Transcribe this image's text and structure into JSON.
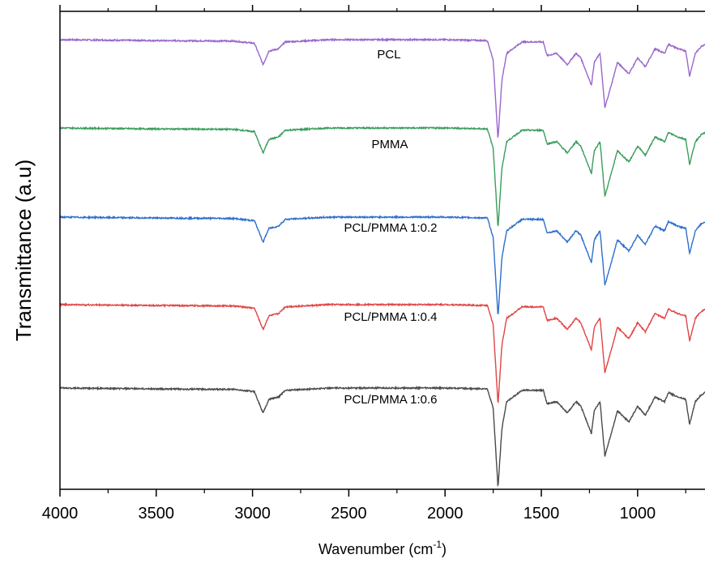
{
  "chart_data": {
    "type": "line",
    "xlabel": "Wavenumber (cm-1)",
    "xlabel_parts": {
      "main": "Wavenumber (cm",
      "sup": "-1",
      "close": ")"
    },
    "ylabel": "Transmittance (a.u)",
    "xlim": [
      4000,
      650
    ],
    "x_reversed": true,
    "y_tick_labels": false,
    "grid": false,
    "x_ticks": [
      4000,
      3500,
      3000,
      2500,
      2000,
      1500,
      1000
    ],
    "x_tick_labels": [
      "4000",
      "3500",
      "3000",
      "2500",
      "2000",
      "1500",
      "1000"
    ],
    "series": [
      {
        "name": "PCL",
        "color": "#9966cc",
        "offset": 4,
        "points": [
          [
            4000,
            0
          ],
          [
            3500,
            -0.02
          ],
          [
            3100,
            -0.03
          ],
          [
            2990,
            -0.08
          ],
          [
            2945,
            -0.55
          ],
          [
            2915,
            -0.25
          ],
          [
            2865,
            -0.2
          ],
          [
            2830,
            -0.05
          ],
          [
            2600,
            0
          ],
          [
            2000,
            0
          ],
          [
            1780,
            -0.02
          ],
          [
            1750,
            -0.45
          ],
          [
            1725,
            -2.2
          ],
          [
            1705,
            -0.9
          ],
          [
            1680,
            -0.3
          ],
          [
            1600,
            -0.05
          ],
          [
            1490,
            -0.05
          ],
          [
            1470,
            -0.35
          ],
          [
            1420,
            -0.3
          ],
          [
            1365,
            -0.55
          ],
          [
            1320,
            -0.3
          ],
          [
            1295,
            -0.4
          ],
          [
            1240,
            -1.0
          ],
          [
            1225,
            -0.5
          ],
          [
            1195,
            -0.3
          ],
          [
            1170,
            -1.5
          ],
          [
            1130,
            -0.9
          ],
          [
            1105,
            -0.5
          ],
          [
            1045,
            -0.75
          ],
          [
            1000,
            -0.4
          ],
          [
            960,
            -0.6
          ],
          [
            910,
            -0.2
          ],
          [
            860,
            -0.3
          ],
          [
            840,
            -0.1
          ],
          [
            790,
            -0.2
          ],
          [
            750,
            -0.25
          ],
          [
            730,
            -0.8
          ],
          [
            700,
            -0.3
          ],
          [
            670,
            -0.15
          ],
          [
            650,
            -0.1
          ]
        ]
      },
      {
        "name": "PMMA",
        "color": "#3a9d5d",
        "offset": 3,
        "points": [
          [
            4000,
            0
          ],
          [
            3500,
            -0.02
          ],
          [
            3100,
            -0.03
          ],
          [
            2990,
            -0.08
          ],
          [
            2945,
            -0.55
          ],
          [
            2915,
            -0.25
          ],
          [
            2865,
            -0.2
          ],
          [
            2830,
            -0.05
          ],
          [
            2600,
            0
          ],
          [
            2000,
            0
          ],
          [
            1780,
            -0.02
          ],
          [
            1750,
            -0.45
          ],
          [
            1725,
            -2.2
          ],
          [
            1705,
            -0.9
          ],
          [
            1680,
            -0.3
          ],
          [
            1600,
            -0.05
          ],
          [
            1490,
            -0.05
          ],
          [
            1470,
            -0.35
          ],
          [
            1420,
            -0.3
          ],
          [
            1365,
            -0.55
          ],
          [
            1320,
            -0.3
          ],
          [
            1295,
            -0.4
          ],
          [
            1240,
            -1.0
          ],
          [
            1225,
            -0.5
          ],
          [
            1195,
            -0.3
          ],
          [
            1170,
            -1.5
          ],
          [
            1130,
            -0.9
          ],
          [
            1105,
            -0.5
          ],
          [
            1045,
            -0.75
          ],
          [
            1000,
            -0.4
          ],
          [
            960,
            -0.6
          ],
          [
            910,
            -0.2
          ],
          [
            860,
            -0.3
          ],
          [
            840,
            -0.1
          ],
          [
            790,
            -0.2
          ],
          [
            750,
            -0.25
          ],
          [
            730,
            -0.8
          ],
          [
            700,
            -0.3
          ],
          [
            670,
            -0.15
          ],
          [
            650,
            -0.1
          ]
        ]
      },
      {
        "name": "PCL/PMMA 1:0.2",
        "color": "#2e6fcc",
        "offset": 2,
        "points": [
          [
            4000,
            0
          ],
          [
            3500,
            -0.02
          ],
          [
            3100,
            -0.03
          ],
          [
            2990,
            -0.08
          ],
          [
            2945,
            -0.55
          ],
          [
            2915,
            -0.25
          ],
          [
            2865,
            -0.2
          ],
          [
            2830,
            -0.05
          ],
          [
            2600,
            0
          ],
          [
            2000,
            0
          ],
          [
            1780,
            -0.02
          ],
          [
            1750,
            -0.45
          ],
          [
            1725,
            -2.2
          ],
          [
            1705,
            -0.9
          ],
          [
            1680,
            -0.3
          ],
          [
            1600,
            -0.05
          ],
          [
            1490,
            -0.05
          ],
          [
            1470,
            -0.35
          ],
          [
            1420,
            -0.3
          ],
          [
            1365,
            -0.55
          ],
          [
            1320,
            -0.3
          ],
          [
            1295,
            -0.4
          ],
          [
            1240,
            -1.0
          ],
          [
            1225,
            -0.5
          ],
          [
            1195,
            -0.3
          ],
          [
            1170,
            -1.5
          ],
          [
            1130,
            -0.9
          ],
          [
            1105,
            -0.5
          ],
          [
            1045,
            -0.75
          ],
          [
            1000,
            -0.4
          ],
          [
            960,
            -0.6
          ],
          [
            910,
            -0.2
          ],
          [
            860,
            -0.3
          ],
          [
            840,
            -0.1
          ],
          [
            790,
            -0.2
          ],
          [
            750,
            -0.25
          ],
          [
            730,
            -0.8
          ],
          [
            700,
            -0.3
          ],
          [
            670,
            -0.15
          ],
          [
            650,
            -0.1
          ]
        ]
      },
      {
        "name": "PCL/PMMA 1:0.4",
        "color": "#e04545",
        "offset": 1,
        "points": [
          [
            4000,
            0
          ],
          [
            3500,
            -0.02
          ],
          [
            3100,
            -0.03
          ],
          [
            2990,
            -0.08
          ],
          [
            2945,
            -0.55
          ],
          [
            2915,
            -0.25
          ],
          [
            2865,
            -0.2
          ],
          [
            2830,
            -0.05
          ],
          [
            2600,
            0
          ],
          [
            2000,
            0
          ],
          [
            1780,
            -0.02
          ],
          [
            1750,
            -0.45
          ],
          [
            1725,
            -2.2
          ],
          [
            1705,
            -0.9
          ],
          [
            1680,
            -0.3
          ],
          [
            1600,
            -0.05
          ],
          [
            1490,
            -0.05
          ],
          [
            1470,
            -0.35
          ],
          [
            1420,
            -0.3
          ],
          [
            1365,
            -0.55
          ],
          [
            1320,
            -0.3
          ],
          [
            1295,
            -0.4
          ],
          [
            1240,
            -1.0
          ],
          [
            1225,
            -0.5
          ],
          [
            1195,
            -0.3
          ],
          [
            1170,
            -1.5
          ],
          [
            1130,
            -0.9
          ],
          [
            1105,
            -0.5
          ],
          [
            1045,
            -0.75
          ],
          [
            1000,
            -0.4
          ],
          [
            960,
            -0.6
          ],
          [
            910,
            -0.2
          ],
          [
            860,
            -0.3
          ],
          [
            840,
            -0.1
          ],
          [
            790,
            -0.2
          ],
          [
            750,
            -0.25
          ],
          [
            730,
            -0.8
          ],
          [
            700,
            -0.3
          ],
          [
            670,
            -0.15
          ],
          [
            650,
            -0.1
          ]
        ]
      },
      {
        "name": "PCL/PMMA 1:0.6",
        "color": "#4a4a4a",
        "offset": 0,
        "points": [
          [
            4000,
            0
          ],
          [
            3500,
            -0.02
          ],
          [
            3100,
            -0.03
          ],
          [
            2990,
            -0.08
          ],
          [
            2945,
            -0.55
          ],
          [
            2915,
            -0.25
          ],
          [
            2865,
            -0.2
          ],
          [
            2830,
            -0.05
          ],
          [
            2600,
            0
          ],
          [
            2000,
            0
          ],
          [
            1780,
            -0.02
          ],
          [
            1750,
            -0.45
          ],
          [
            1725,
            -2.2
          ],
          [
            1705,
            -0.9
          ],
          [
            1680,
            -0.3
          ],
          [
            1600,
            -0.05
          ],
          [
            1490,
            -0.05
          ],
          [
            1470,
            -0.35
          ],
          [
            1420,
            -0.3
          ],
          [
            1365,
            -0.55
          ],
          [
            1320,
            -0.3
          ],
          [
            1295,
            -0.4
          ],
          [
            1240,
            -1.0
          ],
          [
            1225,
            -0.5
          ],
          [
            1195,
            -0.3
          ],
          [
            1170,
            -1.5
          ],
          [
            1130,
            -0.9
          ],
          [
            1105,
            -0.5
          ],
          [
            1045,
            -0.75
          ],
          [
            1000,
            -0.4
          ],
          [
            960,
            -0.6
          ],
          [
            910,
            -0.2
          ],
          [
            860,
            -0.3
          ],
          [
            840,
            -0.1
          ],
          [
            790,
            -0.2
          ],
          [
            750,
            -0.25
          ],
          [
            730,
            -0.8
          ],
          [
            700,
            -0.3
          ],
          [
            670,
            -0.15
          ],
          [
            650,
            -0.1
          ]
        ]
      }
    ]
  }
}
